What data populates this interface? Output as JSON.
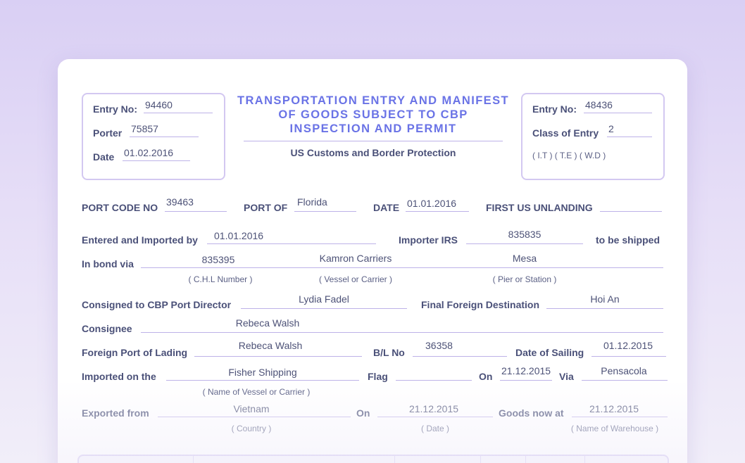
{
  "left_box": {
    "entry_no_label": "Entry No:",
    "entry_no_value": "94460",
    "porter_label": "Porter",
    "porter_value": "75857",
    "date_label": "Date",
    "date_value": "01.02.2016"
  },
  "header": {
    "title_line1": "TRANSPORTATION ENTRY AND MANIFEST",
    "title_line2": "OF GOODS SUBJECT TO CBP",
    "title_line3": "INSPECTION AND PERMIT",
    "subtitle": "US Customs and Border Protection"
  },
  "right_box": {
    "entry_no_label": "Entry No:",
    "entry_no_value": "48436",
    "class_label": "Class of Entry",
    "class_value": "2",
    "class_options": "( I.T ) ( T.E ) ( W.D )"
  },
  "row_port": {
    "port_code_label": "PORT CODE NO",
    "port_code_value": "39463",
    "port_of_label": "PORT OF",
    "port_of_value": "Florida",
    "date_label": "DATE",
    "date_value": "01.01.2016",
    "first_us_label": "FIRST US UNLANDING",
    "first_us_value": ""
  },
  "row_entered": {
    "entered_label": "Entered and Imported by",
    "entered_value": "01.01.2016",
    "importer_label": "Importer IRS",
    "importer_value": "835835",
    "shipped_label": "to be shipped"
  },
  "row_bond": {
    "label": "In bond via",
    "chl_value": "835395",
    "vessel_value": "Kamron Carriers",
    "pier_value": "Mesa",
    "chl_caption": "( C.H.L Number )",
    "vessel_caption": "( Vessel or Carrier )",
    "pier_caption": "( Pier or Station )"
  },
  "row_consigned": {
    "label": "Consigned to CBP Port Director",
    "value": "Lydia Fadel",
    "final_label": "Final Foreign Destination",
    "final_value": "Hoi An"
  },
  "row_consignee": {
    "label": "Consignee",
    "value": "Rebeca Walsh"
  },
  "row_lading": {
    "label": "Foreign Port of Lading",
    "value": "Rebeca Walsh",
    "bl_label": "B/L No",
    "bl_value": "36358",
    "sailing_label": "Date of Sailing",
    "sailing_value": "01.12.2015"
  },
  "row_imported": {
    "label": "Imported on the",
    "value": "Fisher Shipping",
    "caption": "( Name of Vessel or Carrier )",
    "flag_label": "Flag",
    "flag_value": "",
    "on_label": "On",
    "on_value": "21.12.2015",
    "via_label": "Via",
    "via_value": "Pensacola"
  },
  "row_exported": {
    "label": "Exported from",
    "value": "Vietnam",
    "caption": "( Country )",
    "on_label": "On",
    "on_value": "21.12.2015",
    "on_caption": "( Date )",
    "goods_label": "Goods now at",
    "goods_value": "21.12.2015",
    "goods_caption": "( Name of Warehouse )"
  }
}
